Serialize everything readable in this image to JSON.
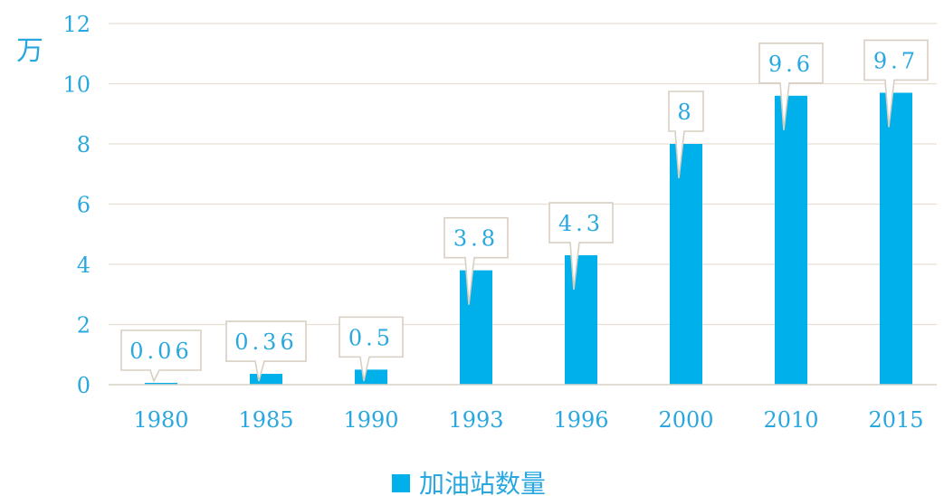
{
  "chart_data": {
    "type": "bar",
    "categories": [
      "1980",
      "1985",
      "1990",
      "1993",
      "1996",
      "2000",
      "2010",
      "2015"
    ],
    "series": [
      {
        "name": "加油站数量",
        "values": [
          0.06,
          0.36,
          0.5,
          3.8,
          4.3,
          8,
          9.6,
          9.7
        ]
      }
    ],
    "data_labels": [
      "0.06",
      "0.36",
      "0.5",
      "3.8",
      "4.3",
      "8",
      "9.6",
      "9.7"
    ],
    "y_unit": "万",
    "ylim": [
      0,
      12
    ],
    "y_ticks": [
      "0",
      "2",
      "4",
      "6",
      "8",
      "10",
      "12"
    ],
    "grid": true,
    "legend_position": "bottom",
    "colors": {
      "bar": "#00b0ea",
      "text": "#29a8e0"
    }
  }
}
